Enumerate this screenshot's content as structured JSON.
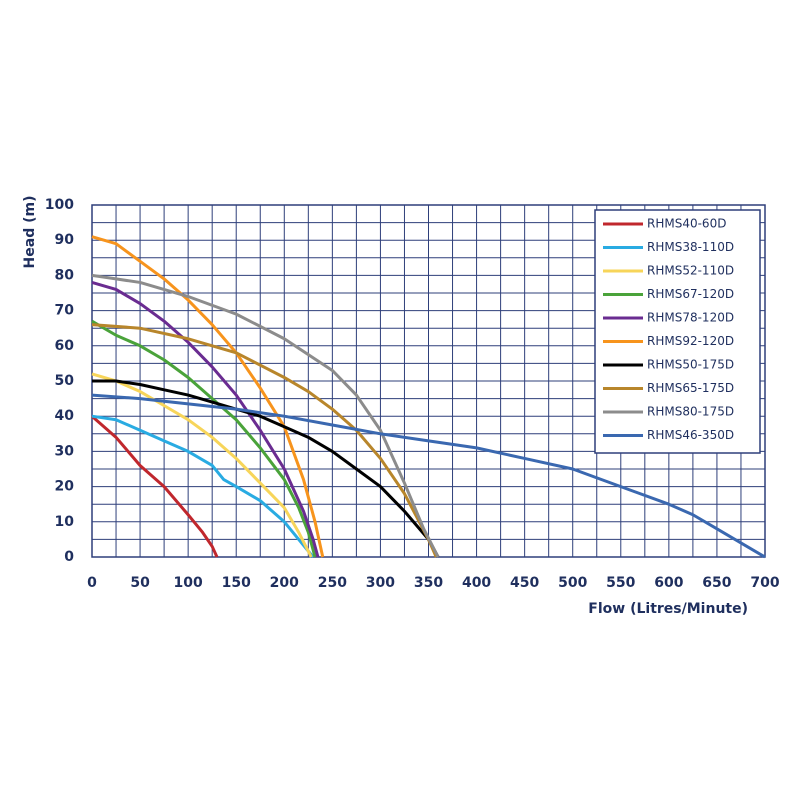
{
  "chart_data": {
    "type": "line",
    "xlabel": "Flow (Litres/Minute)",
    "ylabel": "Head (m)",
    "xlim": [
      0,
      700
    ],
    "ylim": [
      0,
      100
    ],
    "xticks": [
      0,
      50,
      100,
      150,
      200,
      250,
      300,
      350,
      400,
      450,
      500,
      550,
      600,
      650,
      700
    ],
    "yticks": [
      0,
      10,
      20,
      30,
      40,
      50,
      60,
      70,
      80,
      90,
      100
    ],
    "grid": true,
    "legend": "upper right",
    "series": [
      {
        "name": "RHMS40-60D",
        "color": "#c0272d",
        "x": [
          0,
          25,
          50,
          75,
          100,
          115,
          125,
          130
        ],
        "values": [
          40,
          34,
          26,
          20,
          12,
          7,
          3,
          0
        ]
      },
      {
        "name": "RHMS38-110D",
        "color": "#29abe2",
        "x": [
          0,
          25,
          50,
          75,
          100,
          125,
          137,
          150,
          175,
          200,
          215,
          230
        ],
        "values": [
          40,
          39,
          36,
          33,
          30,
          26,
          22,
          20,
          16,
          10,
          5,
          0
        ]
      },
      {
        "name": "RHMS52-110D",
        "color": "#f7d55a",
        "x": [
          0,
          25,
          50,
          75,
          100,
          125,
          150,
          175,
          200,
          215,
          228
        ],
        "values": [
          52,
          50,
          47,
          43,
          39,
          34,
          28,
          21,
          14,
          7,
          0
        ]
      },
      {
        "name": "RHMS67-120D",
        "color": "#4aa33a",
        "x": [
          0,
          25,
          50,
          75,
          100,
          125,
          150,
          175,
          200,
          215,
          225,
          232
        ],
        "values": [
          67,
          63,
          60,
          56,
          51,
          45,
          39,
          31,
          22,
          14,
          7,
          0
        ]
      },
      {
        "name": "RHMS78-120D",
        "color": "#6a2c91",
        "x": [
          0,
          25,
          50,
          75,
          100,
          125,
          150,
          175,
          200,
          220,
          230,
          235
        ],
        "values": [
          78,
          76,
          72,
          67,
          61,
          54,
          46,
          36,
          25,
          13,
          5,
          0
        ]
      },
      {
        "name": "RHMS92-120D",
        "color": "#f7941d",
        "x": [
          0,
          25,
          50,
          75,
          100,
          125,
          150,
          175,
          200,
          220,
          232,
          240
        ],
        "values": [
          91,
          89,
          84,
          79,
          73,
          66,
          58,
          48,
          37,
          22,
          10,
          0
        ]
      },
      {
        "name": "RHMS50-175D",
        "color": "#000000",
        "x": [
          0,
          25,
          50,
          75,
          100,
          125,
          150,
          175,
          200,
          225,
          250,
          275,
          300,
          325,
          350,
          360
        ],
        "values": [
          50,
          50,
          49,
          47.5,
          46,
          44,
          42,
          40,
          37,
          34,
          30,
          25,
          20,
          13,
          5,
          0
        ]
      },
      {
        "name": "RHMS65-175D",
        "color": "#b8862b",
        "x": [
          0,
          50,
          100,
          150,
          200,
          225,
          250,
          275,
          300,
          325,
          350,
          358
        ],
        "values": [
          66,
          65,
          62,
          58,
          51,
          47,
          42,
          36,
          28,
          18,
          5,
          0
        ]
      },
      {
        "name": "RHMS80-175D",
        "color": "#8c8c8c",
        "x": [
          0,
          25,
          50,
          100,
          150,
          200,
          250,
          275,
          300,
          325,
          345,
          360
        ],
        "values": [
          80,
          79,
          78,
          74,
          69,
          62,
          53,
          46,
          36,
          21,
          8,
          0
        ]
      },
      {
        "name": "RHMS46-350D",
        "color": "#3a68b0",
        "x": [
          0,
          50,
          100,
          150,
          200,
          250,
          300,
          350,
          400,
          450,
          500,
          550,
          600,
          625,
          650,
          675,
          700
        ],
        "values": [
          46,
          45,
          43.5,
          42,
          40,
          37.5,
          35,
          33,
          31,
          28,
          25,
          20,
          15,
          12,
          8,
          4,
          0
        ]
      }
    ]
  }
}
